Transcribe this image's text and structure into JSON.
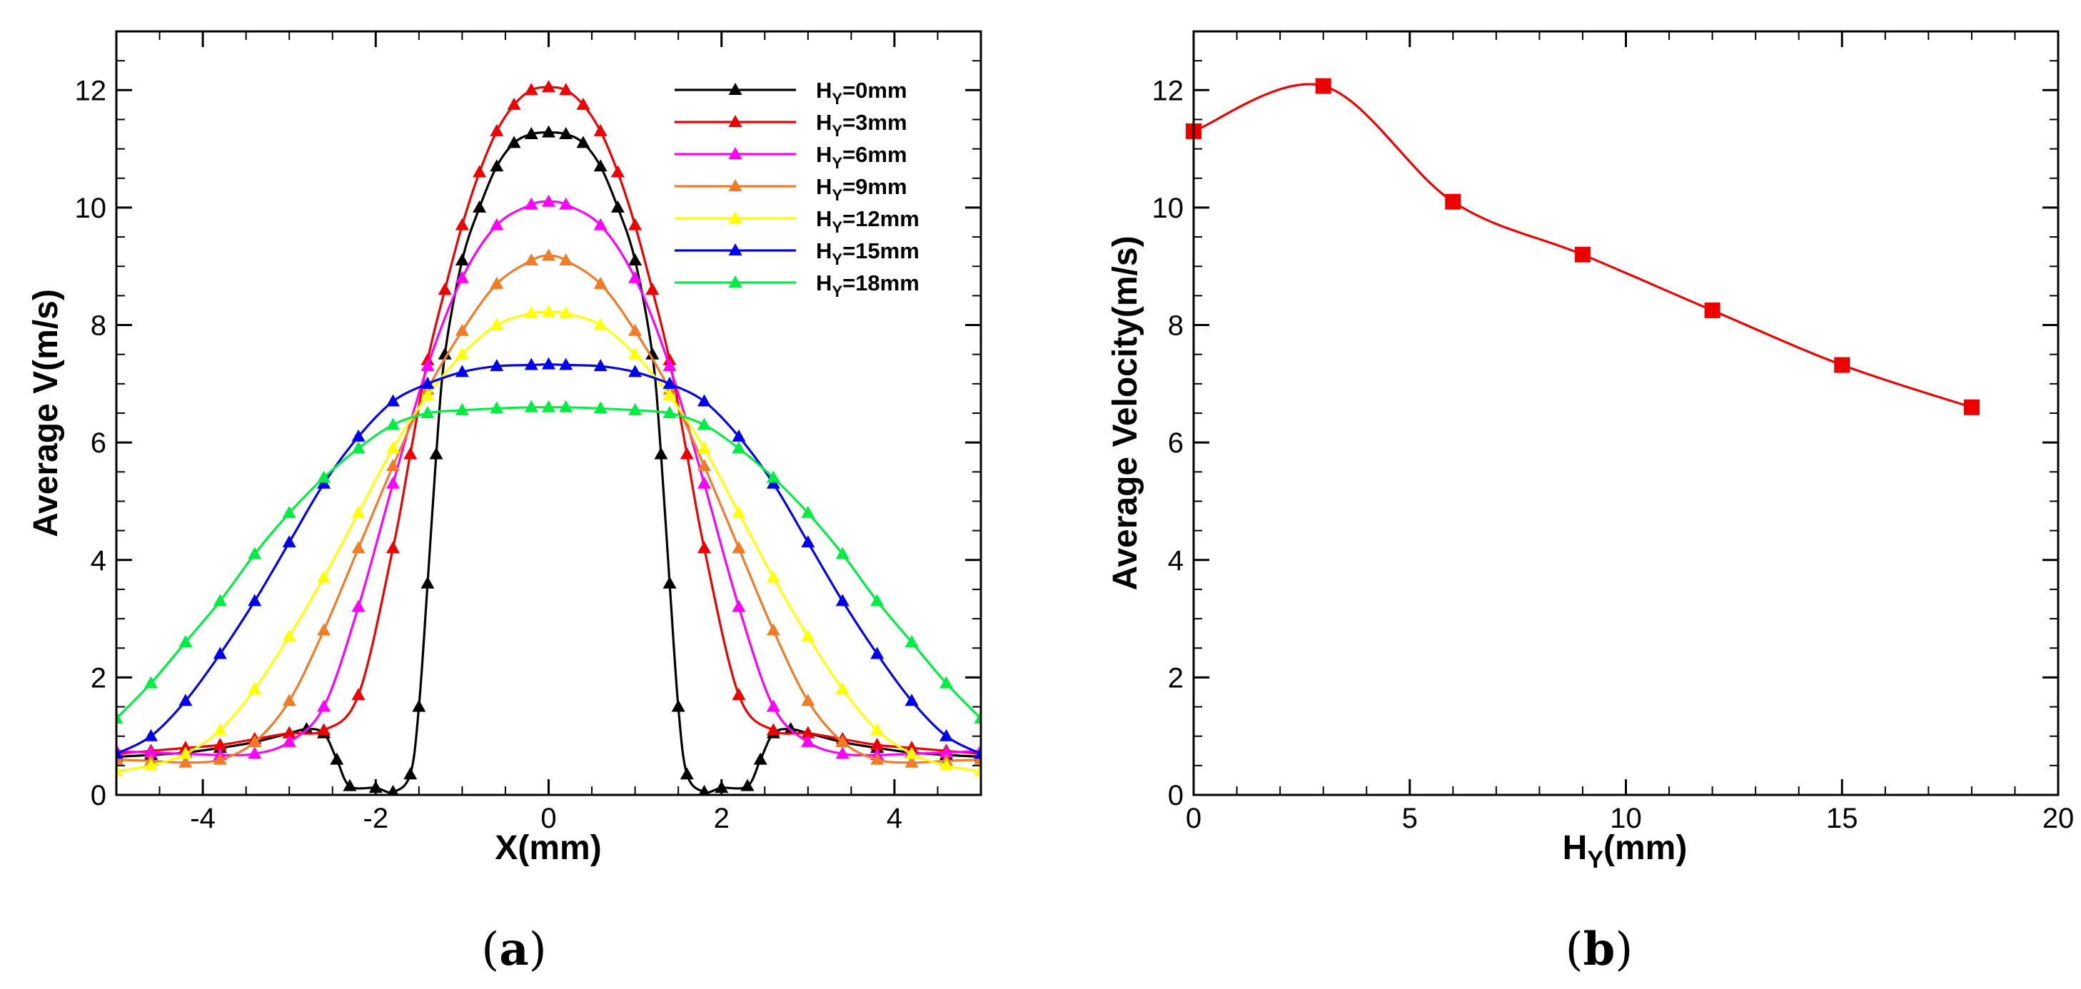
{
  "chart_data": [
    {
      "type": "line",
      "panel": "a",
      "panel_label_open": "(",
      "panel_label_letter": "a",
      "panel_label_close": ")",
      "xlabel": "X(mm)",
      "ylabel": "Average V(m/s)",
      "xlim": [
        -5,
        5
      ],
      "ylim": [
        0,
        13
      ],
      "xticks": [
        -4,
        -2,
        0,
        2,
        4
      ],
      "yticks": [
        0,
        2,
        4,
        6,
        8,
        10,
        12
      ],
      "legend_position": "top-right",
      "series": [
        {
          "name": "HY=0mm",
          "label_main": "H",
          "label_sub": "Y",
          "label_rest": "=0mm",
          "color": "#000000",
          "x": [
            -5,
            -4.6,
            -4.2,
            -3.8,
            -3.4,
            -3.0,
            -2.8,
            -2.6,
            -2.45,
            -2.3,
            -2.0,
            -1.8,
            -1.6,
            -1.5,
            -1.4,
            -1.3,
            -1.2,
            -1.0,
            -0.8,
            -0.6,
            -0.4,
            -0.2,
            0,
            0.2,
            0.4,
            0.6,
            0.8,
            1.0,
            1.2,
            1.3,
            1.4,
            1.5,
            1.6,
            1.8,
            2.0,
            2.3,
            2.45,
            2.6,
            2.8,
            3.0,
            3.4,
            3.8,
            4.2,
            4.6,
            5.0
          ],
          "y": [
            0.65,
            0.68,
            0.72,
            0.8,
            0.9,
            1.05,
            1.12,
            1.05,
            0.6,
            0.15,
            0.12,
            0.05,
            0.35,
            1.5,
            3.6,
            5.8,
            7.5,
            9.1,
            10.0,
            10.7,
            11.1,
            11.25,
            11.28,
            11.25,
            11.1,
            10.7,
            10.0,
            9.1,
            7.5,
            5.8,
            3.6,
            1.5,
            0.35,
            0.05,
            0.12,
            0.15,
            0.6,
            1.05,
            1.12,
            1.05,
            0.9,
            0.8,
            0.72,
            0.68,
            0.65
          ]
        },
        {
          "name": "HY=3mm",
          "label_main": "H",
          "label_sub": "Y",
          "label_rest": "=3mm",
          "color": "#ee0000",
          "x": [
            -5,
            -4.6,
            -4.2,
            -3.8,
            -3.4,
            -3.0,
            -2.6,
            -2.2,
            -1.8,
            -1.6,
            -1.4,
            -1.2,
            -1.0,
            -0.8,
            -0.6,
            -0.4,
            -0.2,
            0,
            0.2,
            0.4,
            0.6,
            0.8,
            1.0,
            1.2,
            1.4,
            1.6,
            1.8,
            2.2,
            2.6,
            3.0,
            3.4,
            3.8,
            4.2,
            4.6,
            5.0
          ],
          "y": [
            0.7,
            0.75,
            0.8,
            0.85,
            0.95,
            1.05,
            1.1,
            1.7,
            4.2,
            5.8,
            7.4,
            8.6,
            9.7,
            10.6,
            11.3,
            11.75,
            12.0,
            12.05,
            12.0,
            11.75,
            11.3,
            10.6,
            9.7,
            8.6,
            7.4,
            5.8,
            4.2,
            1.7,
            1.1,
            1.05,
            0.95,
            0.85,
            0.8,
            0.75,
            0.7
          ]
        },
        {
          "name": "HY=6mm",
          "label_main": "H",
          "label_sub": "Y",
          "label_rest": "=6mm",
          "color": "#ff00ff",
          "x": [
            -5,
            -4.6,
            -4.2,
            -3.8,
            -3.4,
            -3.0,
            -2.6,
            -2.2,
            -1.8,
            -1.4,
            -1.0,
            -0.6,
            -0.2,
            0,
            0.2,
            0.6,
            1.0,
            1.4,
            1.8,
            2.2,
            2.6,
            3.0,
            3.4,
            3.8,
            4.2,
            4.6,
            5.0
          ],
          "y": [
            0.75,
            0.72,
            0.7,
            0.68,
            0.7,
            0.9,
            1.5,
            3.2,
            5.3,
            7.3,
            8.8,
            9.7,
            10.05,
            10.1,
            10.05,
            9.7,
            8.8,
            7.3,
            5.3,
            3.2,
            1.5,
            0.9,
            0.7,
            0.68,
            0.7,
            0.72,
            0.75
          ]
        },
        {
          "name": "HY=9mm",
          "label_main": "H",
          "label_sub": "Y",
          "label_rest": "=9mm",
          "color": "#f07c28",
          "x": [
            -5,
            -4.6,
            -4.2,
            -3.8,
            -3.4,
            -3.0,
            -2.6,
            -2.2,
            -1.8,
            -1.4,
            -1.0,
            -0.6,
            -0.2,
            0,
            0.2,
            0.6,
            1.0,
            1.4,
            1.8,
            2.2,
            2.6,
            3.0,
            3.4,
            3.8,
            4.2,
            4.6,
            5.0
          ],
          "y": [
            0.6,
            0.58,
            0.55,
            0.6,
            0.9,
            1.6,
            2.8,
            4.2,
            5.6,
            6.9,
            7.9,
            8.7,
            9.1,
            9.18,
            9.1,
            8.7,
            7.9,
            6.9,
            5.6,
            4.2,
            2.8,
            1.6,
            0.9,
            0.6,
            0.55,
            0.58,
            0.6
          ]
        },
        {
          "name": "HY=12mm",
          "label_main": "H",
          "label_sub": "Y",
          "label_rest": "=12mm",
          "color": "#ffff00",
          "x": [
            -5,
            -4.6,
            -4.2,
            -3.8,
            -3.4,
            -3.0,
            -2.6,
            -2.2,
            -1.8,
            -1.4,
            -1.0,
            -0.6,
            -0.2,
            0,
            0.2,
            0.6,
            1.0,
            1.4,
            1.8,
            2.2,
            2.6,
            3.0,
            3.4,
            3.8,
            4.2,
            4.6,
            5.0
          ],
          "y": [
            0.4,
            0.5,
            0.7,
            1.1,
            1.8,
            2.7,
            3.7,
            4.8,
            5.9,
            6.8,
            7.5,
            8.0,
            8.2,
            8.22,
            8.2,
            8.0,
            7.5,
            6.8,
            5.9,
            4.8,
            3.7,
            2.7,
            1.8,
            1.1,
            0.7,
            0.5,
            0.4
          ]
        },
        {
          "name": "HY=15mm",
          "label_main": "H",
          "label_sub": "Y",
          "label_rest": "=15mm",
          "color": "#0000ee",
          "x": [
            -5,
            -4.6,
            -4.2,
            -3.8,
            -3.4,
            -3.0,
            -2.6,
            -2.2,
            -1.8,
            -1.4,
            -1.0,
            -0.6,
            -0.2,
            0,
            0.2,
            0.6,
            1.0,
            1.4,
            1.8,
            2.2,
            2.6,
            3.0,
            3.4,
            3.8,
            4.2,
            4.6,
            5.0
          ],
          "y": [
            0.7,
            1.0,
            1.6,
            2.4,
            3.3,
            4.3,
            5.3,
            6.1,
            6.7,
            7.0,
            7.2,
            7.3,
            7.32,
            7.33,
            7.32,
            7.3,
            7.2,
            7.0,
            6.7,
            6.1,
            5.3,
            4.3,
            3.3,
            2.4,
            1.6,
            1.0,
            0.7
          ]
        },
        {
          "name": "HY=18mm",
          "label_main": "H",
          "label_sub": "Y",
          "label_rest": "=18mm",
          "color": "#00ee44",
          "x": [
            -5,
            -4.6,
            -4.2,
            -3.8,
            -3.4,
            -3.0,
            -2.6,
            -2.2,
            -1.8,
            -1.4,
            -1.0,
            -0.6,
            -0.2,
            0,
            0.2,
            0.6,
            1.0,
            1.4,
            1.8,
            2.2,
            2.6,
            3.0,
            3.4,
            3.8,
            4.2,
            4.6,
            5.0
          ],
          "y": [
            1.3,
            1.9,
            2.6,
            3.3,
            4.1,
            4.8,
            5.4,
            5.9,
            6.3,
            6.5,
            6.55,
            6.58,
            6.6,
            6.6,
            6.6,
            6.58,
            6.55,
            6.5,
            6.3,
            5.9,
            5.4,
            4.8,
            4.1,
            3.3,
            2.6,
            1.9,
            1.3
          ]
        }
      ]
    },
    {
      "type": "line",
      "panel": "b",
      "panel_label_open": "(",
      "panel_label_letter": "b",
      "panel_label_close": ")",
      "xlabel_main": "H",
      "xlabel_sub": "Y",
      "xlabel_rest": "(mm)",
      "ylabel": "Average Velocity(m/s)",
      "xlim": [
        0,
        20
      ],
      "ylim": [
        0,
        13
      ],
      "xticks": [
        0,
        5,
        10,
        15,
        20
      ],
      "yticks": [
        0,
        2,
        4,
        6,
        8,
        10,
        12
      ],
      "series": [
        {
          "name": "Average Velocity",
          "color": "#ee0000",
          "x": [
            0,
            3,
            6,
            9,
            12,
            15,
            18
          ],
          "y": [
            11.3,
            12.07,
            10.1,
            9.2,
            8.25,
            7.32,
            6.6
          ]
        }
      ]
    }
  ]
}
